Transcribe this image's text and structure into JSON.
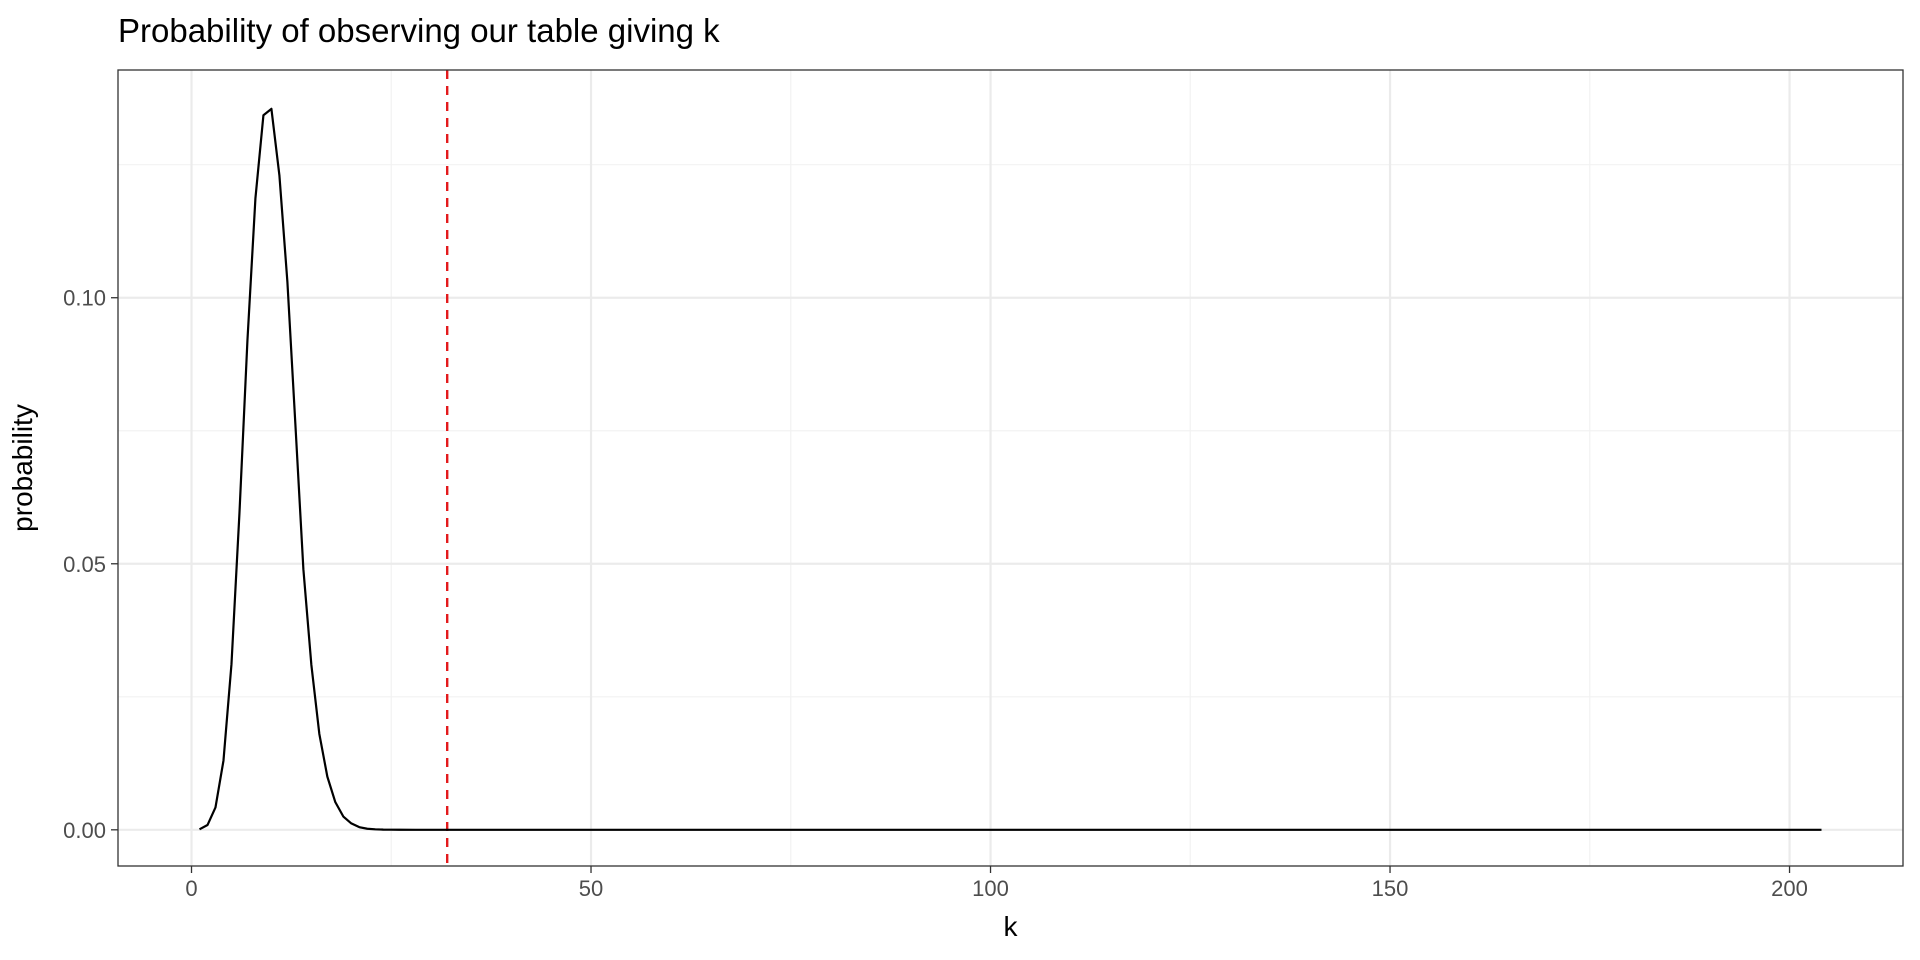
{
  "chart_data": {
    "type": "line",
    "title": "Probability of observing our table giving k",
    "xlabel": "k",
    "ylabel": "probability",
    "xlim": [
      -9.2,
      214.2
    ],
    "ylim": [
      -0.0068,
      0.1428
    ],
    "x_ticks": [
      0,
      50,
      100,
      150,
      200
    ],
    "x_tick_labels": [
      "0",
      "50",
      "100",
      "150",
      "200"
    ],
    "y_ticks": [
      0.0,
      0.05,
      0.1
    ],
    "y_tick_labels": [
      "0.00",
      "0.05",
      "0.10"
    ],
    "x_minor_ticks": [
      25,
      75,
      125,
      175
    ],
    "y_minor_ticks": [
      0.025,
      0.075,
      0.125
    ],
    "grid": true,
    "legend": "none",
    "series": [
      {
        "color": "#000000",
        "x": [
          1,
          2,
          3,
          4,
          5,
          6,
          7,
          8,
          9,
          10,
          11,
          12,
          13,
          14,
          15,
          16,
          17,
          18,
          19,
          20,
          21,
          22,
          23,
          24,
          25,
          26,
          28,
          30,
          35,
          40,
          50,
          75,
          100,
          125,
          150,
          175,
          200,
          204
        ],
        "y": [
          0.0001,
          0.0009,
          0.0042,
          0.013,
          0.0311,
          0.0595,
          0.092,
          0.1187,
          0.1343,
          0.1355,
          0.123,
          0.103,
          0.0762,
          0.049,
          0.031,
          0.018,
          0.01,
          0.0052,
          0.0025,
          0.0012,
          0.0005,
          0.0002,
          0.0001,
          4e-05,
          2e-05,
          1e-05,
          0.0,
          0.0,
          0.0,
          0.0,
          0.0,
          0.0,
          0.0,
          0.0,
          0.0,
          0.0,
          0.0,
          0.0
        ]
      }
    ],
    "vline": {
      "x": 32,
      "color": "#e31a1c",
      "style": "dashed"
    }
  }
}
